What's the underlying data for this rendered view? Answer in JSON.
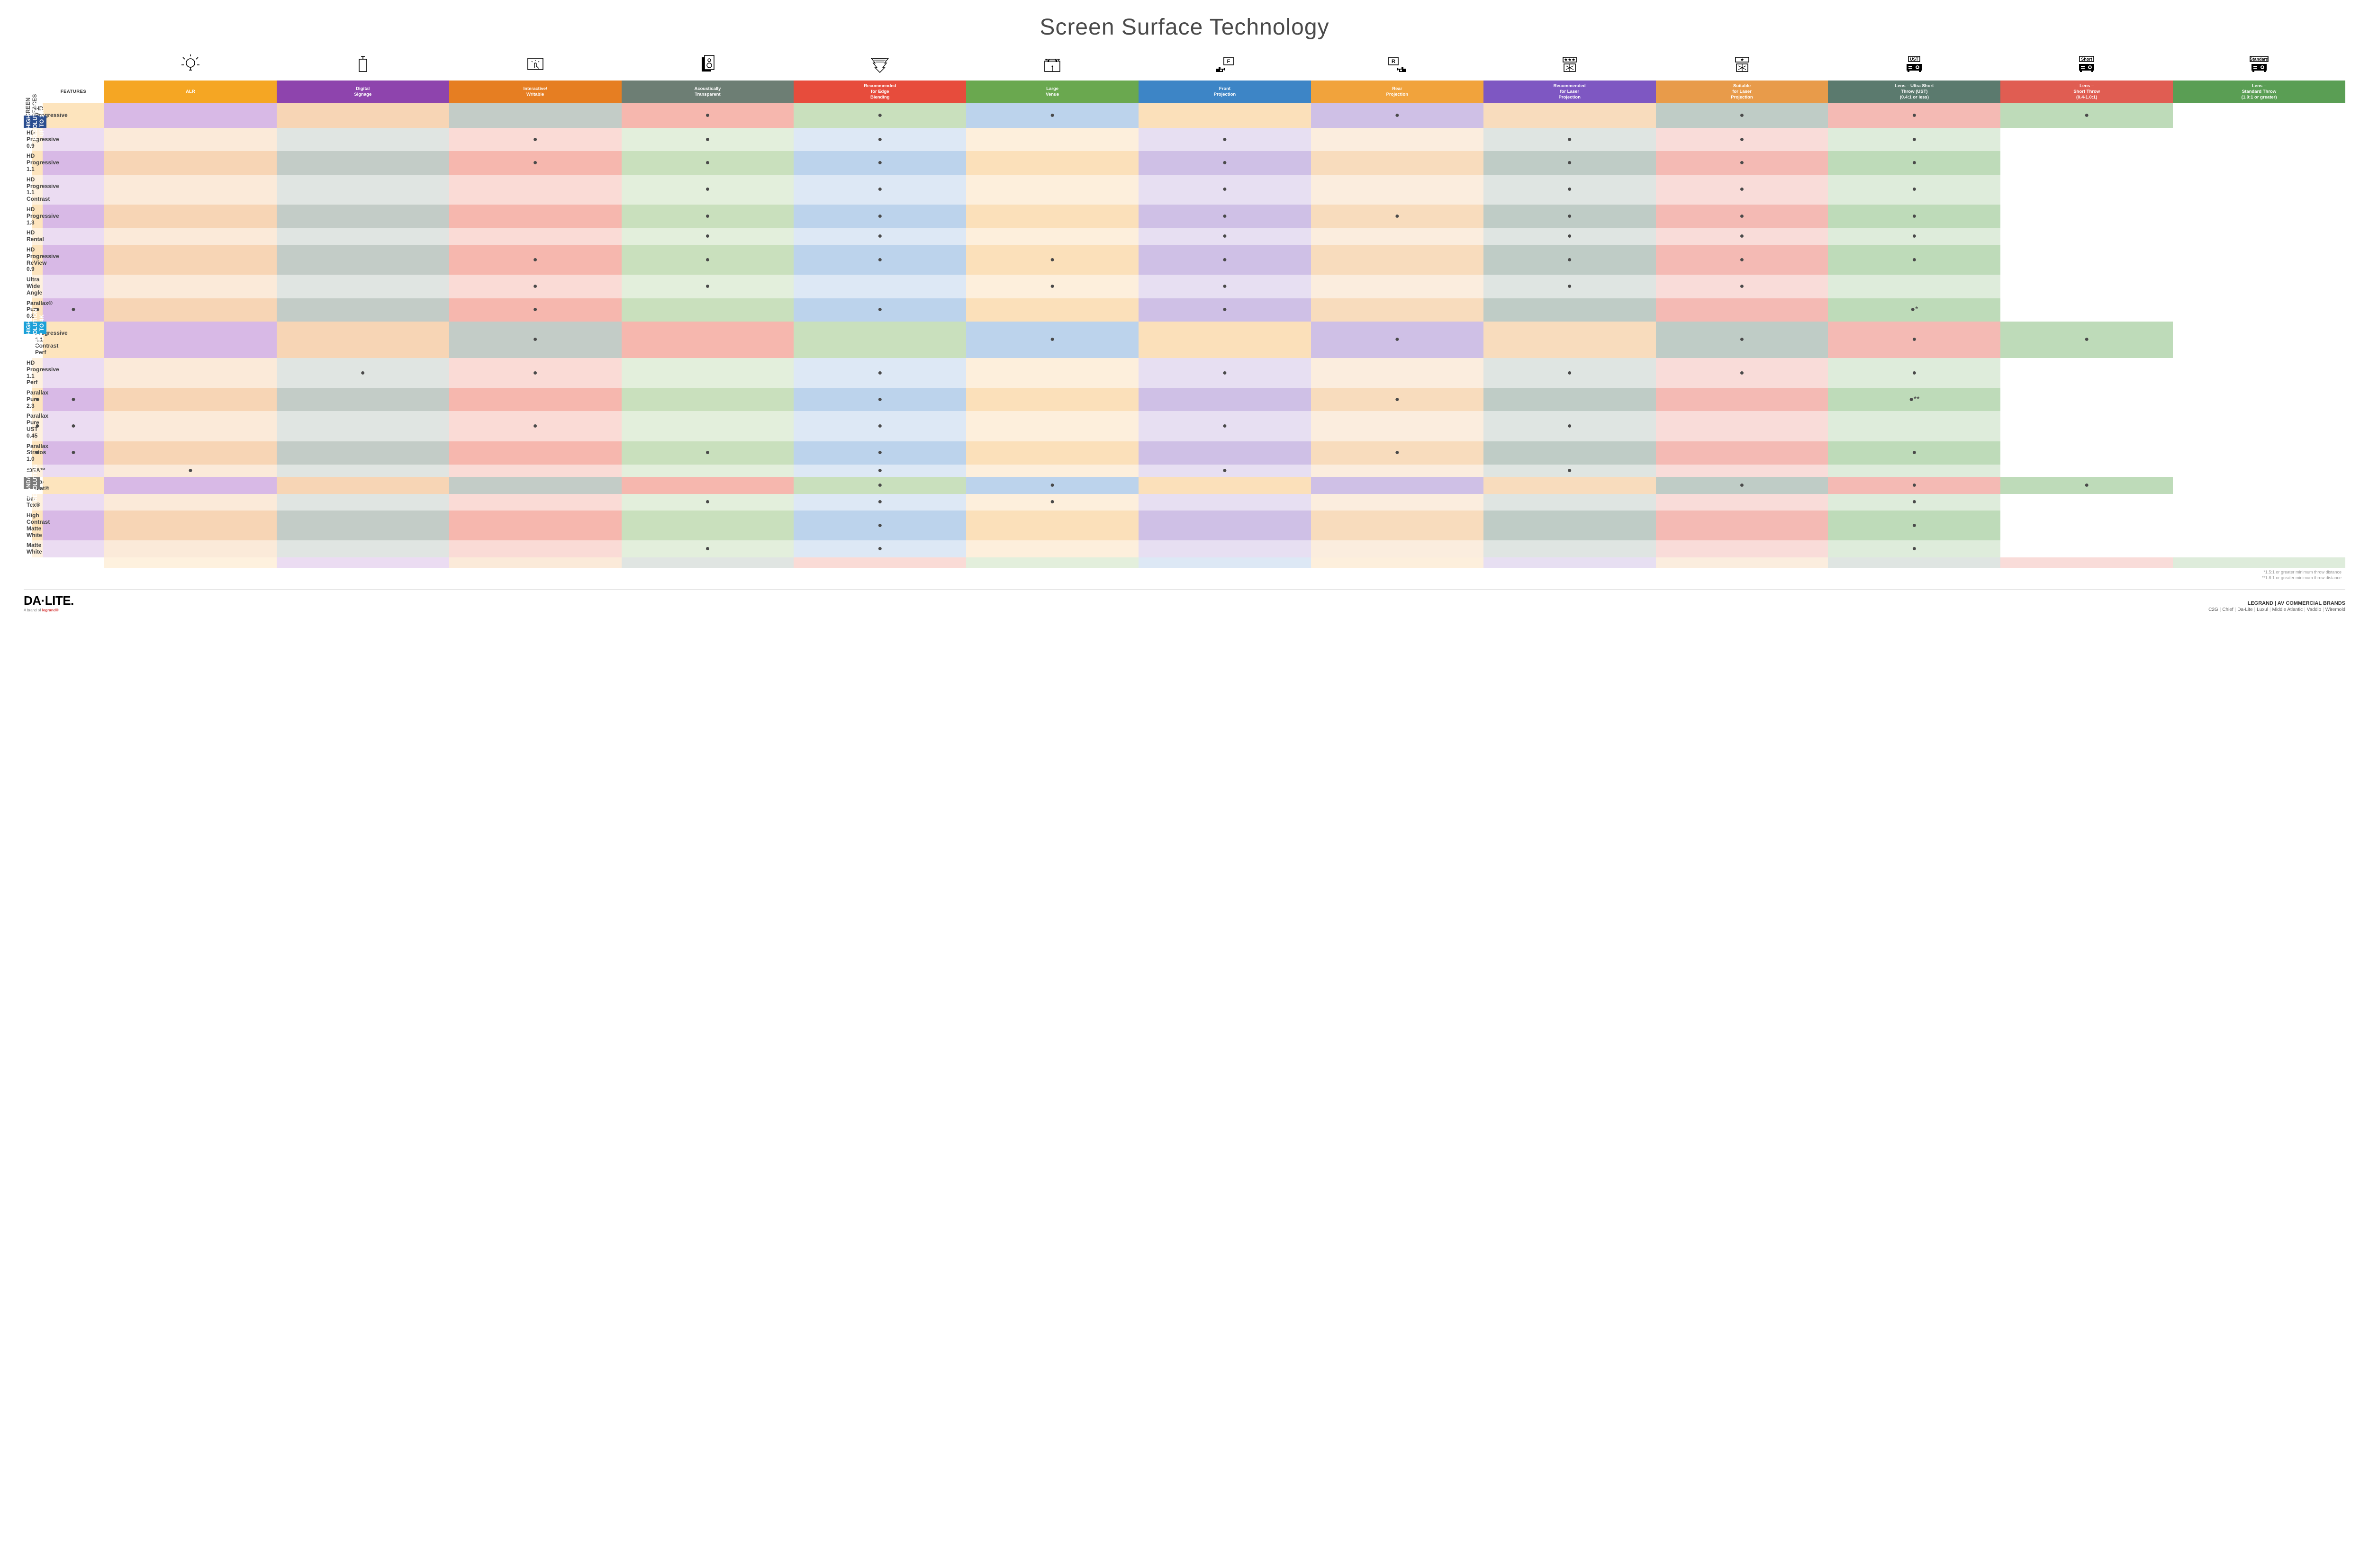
{
  "title": "Screen Surface Technology",
  "features_header": "FEATURES",
  "columns": [
    {
      "key": "alr",
      "label": "ALR",
      "color": "#f5a623",
      "light": "#fde4bd",
      "lighter": "#fef1de",
      "icon": "bulb"
    },
    {
      "key": "dsign",
      "label": "Digital\nSignage",
      "color": "#8e44ad",
      "light": "#d8b9e6",
      "lighter": "#ebdcf2",
      "icon": "signage"
    },
    {
      "key": "interactive",
      "label": "Interactive/\nWritable",
      "color": "#e67e22",
      "light": "#f7d5b5",
      "lighter": "#fbead9",
      "icon": "touch"
    },
    {
      "key": "acoustic",
      "label": "Acoustically\nTransparent",
      "color": "#6d7e74",
      "light": "#c3ccc7",
      "lighter": "#e0e5e2",
      "icon": "speaker"
    },
    {
      "key": "edge",
      "label": "Recommended\nfor Edge\nBlending",
      "color": "#e74c3c",
      "light": "#f6b7ae",
      "lighter": "#fadbd6",
      "icon": "edge"
    },
    {
      "key": "large",
      "label": "Large\nVenue",
      "color": "#6aa84f",
      "light": "#c9e0bd",
      "lighter": "#e3efdc",
      "icon": "venue"
    },
    {
      "key": "front",
      "label": "Front\nProjection",
      "color": "#3d85c6",
      "light": "#bcd3ec",
      "lighter": "#dde8f5",
      "icon": "front"
    },
    {
      "key": "rear",
      "label": "Rear\nProjection",
      "color": "#f1a33c",
      "light": "#fbe0ba",
      "lighter": "#fdefdc",
      "icon": "rear"
    },
    {
      "key": "reclaser",
      "label": "Recommended\nfor Laser\nProjection",
      "color": "#7e57c2",
      "light": "#cfc0e6",
      "lighter": "#e7dff2",
      "icon": "laser3"
    },
    {
      "key": "suitlaser",
      "label": "Suitable\nfor Laser\nProjection",
      "color": "#e89b4a",
      "light": "#f8dcbd",
      "lighter": "#fbedde",
      "icon": "laser1"
    },
    {
      "key": "ust",
      "label": "Lens – Ultra Short\nThrow (UST)\n(0.4:1 or less)",
      "color": "#5b7a6e",
      "light": "#bfccC6",
      "lighter": "#dfe5e2",
      "icon": "proj-ust",
      "projText": "UST"
    },
    {
      "key": "short",
      "label": "Lens –\nShort Throw\n(0.4-1.0:1)",
      "color": "#e05d52",
      "light": "#f4bab4",
      "lighter": "#f9dcd9",
      "icon": "proj-short",
      "projText": "Short"
    },
    {
      "key": "std",
      "label": "Lens –\nStandard Throw\n(1.0:1 or greater)",
      "color": "#5a9e54",
      "light": "#bedbb9",
      "lighter": "#deecdb",
      "icon": "proj-std",
      "projText": "Standard"
    }
  ],
  "groups": [
    {
      "label": "HIGH RESOLUTION UP TO 16K",
      "color": "#2a4d8f",
      "rows": [
        {
          "label": "HD Progressive 0.6",
          "cells": {
            "edge": "●",
            "large": "●",
            "front": "●",
            "reclaser": "●",
            "ust": "●",
            "short": "●",
            "std": "●"
          }
        },
        {
          "label": "HD Progressive 0.9",
          "cells": {
            "edge": "●",
            "large": "●",
            "front": "●",
            "reclaser": "●",
            "ust": "●",
            "short": "●",
            "std": "●"
          }
        },
        {
          "label": "HD Progressive 1.1",
          "cells": {
            "edge": "●",
            "large": "●",
            "front": "●",
            "reclaser": "●",
            "ust": "●",
            "short": "●",
            "std": "●"
          }
        },
        {
          "label": "HD Progressive\n1.1 Contrast",
          "cells": {
            "large": "●",
            "front": "●",
            "reclaser": "●",
            "ust": "●",
            "short": "●",
            "std": "●"
          }
        },
        {
          "label": "HD Progressive 1.3",
          "cells": {
            "large": "●",
            "front": "●",
            "reclaser": "●",
            "suitlaser": "●",
            "ust": "●",
            "short": "●",
            "std": "●"
          }
        },
        {
          "label": "HD Rental",
          "cells": {
            "large": "●",
            "front": "●",
            "reclaser": "●",
            "ust": "●",
            "short": "●",
            "std": "●"
          }
        },
        {
          "label": "HD Progressive ReView 0.9",
          "cells": {
            "edge": "●",
            "large": "●",
            "front": "●",
            "rear": "●",
            "reclaser": "●",
            "ust": "●",
            "short": "●",
            "std": "●"
          }
        },
        {
          "label": "Ultra Wide Angle",
          "cells": {
            "edge": "●",
            "large": "●",
            "rear": "●",
            "reclaser": "●",
            "ust": "●",
            "short": "●"
          }
        },
        {
          "label": "Parallax® Pure 0.8",
          "cells": {
            "alr": "●",
            "dsign": "●",
            "edge": "●",
            "front": "●",
            "reclaser": "●",
            "std": "●*"
          }
        }
      ]
    },
    {
      "label": "HIGH RESOLUTION UP TO 4K",
      "color": "#1aa0d8",
      "rows": [
        {
          "label": "HD Progressive 1.1\nContrast Perf",
          "cells": {
            "acoustic": "●",
            "front": "●",
            "reclaser": "●",
            "ust": "●",
            "short": "●",
            "std": "●"
          }
        },
        {
          "label": "HD Progressive 1.1 Perf",
          "cells": {
            "acoustic": "●",
            "edge": "●",
            "front": "●",
            "reclaser": "●",
            "ust": "●",
            "short": "●",
            "std": "●"
          }
        },
        {
          "label": "Parallax Pure 2.3",
          "cells": {
            "alr": "●",
            "dsign": "●",
            "front": "●",
            "suitlaser": "●",
            "std": "●**"
          }
        },
        {
          "label": "Parallax Pure UST 0.45",
          "cells": {
            "alr": "●",
            "dsign": "●",
            "edge": "●",
            "front": "●",
            "reclaser": "●",
            "ust": "●"
          }
        },
        {
          "label": "Parallax Stratos 1.0",
          "cells": {
            "alr": "●",
            "dsign": "●",
            "large": "●",
            "front": "●",
            "suitlaser": "●",
            "std": "●"
          }
        },
        {
          "label": "IDEA™",
          "cells": {
            "interactive": "●",
            "front": "●",
            "reclaser": "●",
            "ust": "●"
          }
        }
      ]
    },
    {
      "label": "STANDARD\nRESOLUTION",
      "color": "#7a7a7a",
      "rows": [
        {
          "label": "Da-Mat®",
          "cells": {
            "large": "●",
            "front": "●",
            "ust": "●",
            "short": "●",
            "std": "●"
          }
        },
        {
          "label": "Da-Tex®",
          "cells": {
            "large": "●",
            "front": "●",
            "rear": "●",
            "std": "●"
          }
        },
        {
          "label": "High Contrast\nMatte White",
          "cells": {
            "front": "●",
            "std": "●"
          }
        },
        {
          "label": "Matte White",
          "cells": {
            "large": "●",
            "front": "●",
            "std": "●"
          }
        }
      ]
    }
  ],
  "side_outer_label": "SCREEN SURFACES",
  "footnotes": [
    "*1.5:1 or greater minimum throw distance",
    "**1.8:1 or greater minimum throw distance"
  ],
  "footer": {
    "logo_main": "DA·LITE.",
    "logo_sub_prefix": "A brand of ",
    "logo_sub_brand": "legrand®",
    "brand_top": "LEGRAND | AV COMMERCIAL BRANDS",
    "brands": [
      "C2G",
      "Chief",
      "Da-Lite",
      "Luxul",
      "Middle Atlantic",
      "Vaddio",
      "Wiremold"
    ]
  },
  "svg": {
    "bulb": "<circle cx='22' cy='18' r='9' fill='none' stroke='#000' stroke-width='1.6'/><line x1='22' y1='27' x2='22' y2='33' stroke='#000' stroke-width='1.6'/><line x1='19' y1='33' x2='25' y2='33' stroke='#000' stroke-width='1.6'/><line x1='22' y1='4' x2='22' y2='0' stroke='#000' stroke-width='1.6'/><line x1='10' y1='10' x2='6' y2='6' stroke='#000' stroke-width='1.6'/><line x1='34' y1='10' x2='38' y2='6' stroke='#000' stroke-width='1.6'/><line x1='8' y1='22' x2='3' y2='22' stroke='#000' stroke-width='1.6'/><line x1='36' y1='22' x2='41' y2='22' stroke='#000' stroke-width='1.6'/>",
    "signage": "<rect x='14' y='10' width='16' height='26' fill='none' stroke='#000' stroke-width='1.6'/><line x1='22' y1='10' x2='22' y2='4' stroke='#000' stroke-width='1.6'/><line x1='18' y1='4' x2='26' y2='4' stroke='#000' stroke-width='1.6'/>",
    "touch": "<rect x='6' y='8' width='32' height='24' fill='none' stroke='#000' stroke-width='1.6'/><path d='M20 28 l0 -8 q0 -2 2 -2 q2 0 2 2 l0 6 q4 0 4 4' fill='none' stroke='#000' stroke-width='1.4'/><line x1='14' y1='14' x2='16' y2='16' stroke='#000' stroke-width='1.2'/><line x1='30' y1='14' x2='28' y2='16' stroke='#000' stroke-width='1.2'/><line x1='22' y1='12' x2='22' y2='14' stroke='#000' stroke-width='1.2'/>",
    "speaker": "<rect x='10' y='6' width='20' height='30' fill='#000'/><rect x='16' y='2' width='20' height='30' fill='#fff' stroke='#000' stroke-width='1.6'/><circle cx='26' cy='12' r='3' fill='none' stroke='#000' stroke-width='1.4'/><circle cx='26' cy='23' r='5' fill='none' stroke='#000' stroke-width='1.4'/>",
    "edge": "<path d='M4 8 L40 8 L32 18 L36 18 L28 28 L32 28 L22 38 L12 28 L16 28 L8 18 L12 18 Z' fill='none' stroke='#000' stroke-width='1.4'/><line x1='8' y1='8' x2='36' y2='8' stroke='#000' stroke-width='1.4'/><line x1='10' y1='12' x2='34' y2='12' stroke='#000' stroke-width='1'/><line x1='13' y1='16' x2='31' y2='16' stroke='#000' stroke-width='1'/>",
    "venue": "<rect x='6' y='14' width='32' height='22' fill='none' stroke='#000' stroke-width='1.6'/><line x1='6' y1='10' x2='38' y2='10' stroke='#000' stroke-width='1.6'/><line x1='10' y1='10' x2='8' y2='14' stroke='#000' stroke-width='1.2'/><line x1='16' y1='10' x2='14' y2='14' stroke='#000' stroke-width='1.2'/><line x1='28' y1='10' x2='30' y2='14' stroke='#000' stroke-width='1.2'/><line x1='34' y1='10' x2='36' y2='14' stroke='#000' stroke-width='1.2'/><rect x='12' y='12' width='3' height='4' fill='#000'/><rect x='29' y='12' width='3' height='4' fill='#000'/><line x1='22' y1='36' x2='22' y2='26' stroke='#000' stroke-width='1.4'/><circle cx='22' cy='25' r='1.5' fill='#000'/>",
    "front": "<rect x='20' y='6' width='20' height='16' fill='none' stroke='#000' stroke-width='1.6'/><text x='30' y='18' text-anchor='middle' font-family='Arial' font-size='11' font-weight='700'>F</text><path d='M4 30 h14 v7 h-14 z' fill='#000'/><circle cx='14' cy='33.5' r='2' fill='#fff'/><rect x='9' y='27' width='4' height='3' fill='#000'/><path d='M18 31 l4 -3 l0 6 z' fill='#000'/>",
    "rear": "<rect x='4' y='6' width='20' height='16' fill='none' stroke='#000' stroke-width='1.6'/><text x='14' y='18' text-anchor='middle' font-family='Arial' font-size='11' font-weight='700'>R</text><path d='M26 30 h14 v7 h-14 z' fill='#000'/><circle cx='30' cy='33.5' r='2' fill='#fff'/><rect x='31' y='27' width='4' height='3' fill='#000'/><path d='M26 31 l-4 -3 l0 6 z' fill='#000'/>",
    "laser3": "<rect x='8' y='6' width='28' height='10' fill='none' stroke='#000' stroke-width='1.6'/><text x='22' y='14' text-anchor='middle' font-family='Arial' font-size='9'>★★★</text><rect x='10' y='20' width='24' height='16' fill='none' stroke='#000' stroke-width='1.6'/><line x1='22' y1='20' x2='22' y2='36' stroke='#000' stroke-width='1.2'/><line x1='14' y1='24' x2='30' y2='32' stroke='#000' stroke-width='1.2'/><line x1='30' y1='24' x2='14' y2='32' stroke='#000' stroke-width='1.2'/>",
    "laser1": "<rect x='8' y='6' width='28' height='10' fill='none' stroke='#000' stroke-width='1.6'/><text x='22' y='14' text-anchor='middle' font-family='Arial' font-size='9'>★</text><rect x='10' y='20' width='24' height='16' fill='none' stroke='#000' stroke-width='1.6'/><line x1='22' y1='20' x2='22' y2='36' stroke='#000' stroke-width='1.2'/><line x1='14' y1='24' x2='30' y2='32' stroke='#000' stroke-width='1.2'/><line x1='30' y1='24' x2='14' y2='32' stroke='#000' stroke-width='1.2'/>",
    "projector": "<rect x='TX' y='4' width='TW' height='11' fill='#fff' stroke='#000' stroke-width='1.6'/><text x='22' y='13' text-anchor='middle' class='proj-text'>TXT</text><rect x='6' y='20' width='32' height='14' fill='#000'/><circle cx='29' cy='27' r='4.5' fill='#fff' stroke='#000' stroke-width='1.2'/><circle cx='29' cy='27' r='2' fill='#000'/><rect x='10' y='24' width='8' height='2' fill='#fff'/><rect x='10' y='28' width='8' height='2' fill='#fff'/><rect x='8' y='34' width='4' height='3' fill='#000'/><rect x='32' y='34' width='4' height='3' fill='#000'/>"
  }
}
